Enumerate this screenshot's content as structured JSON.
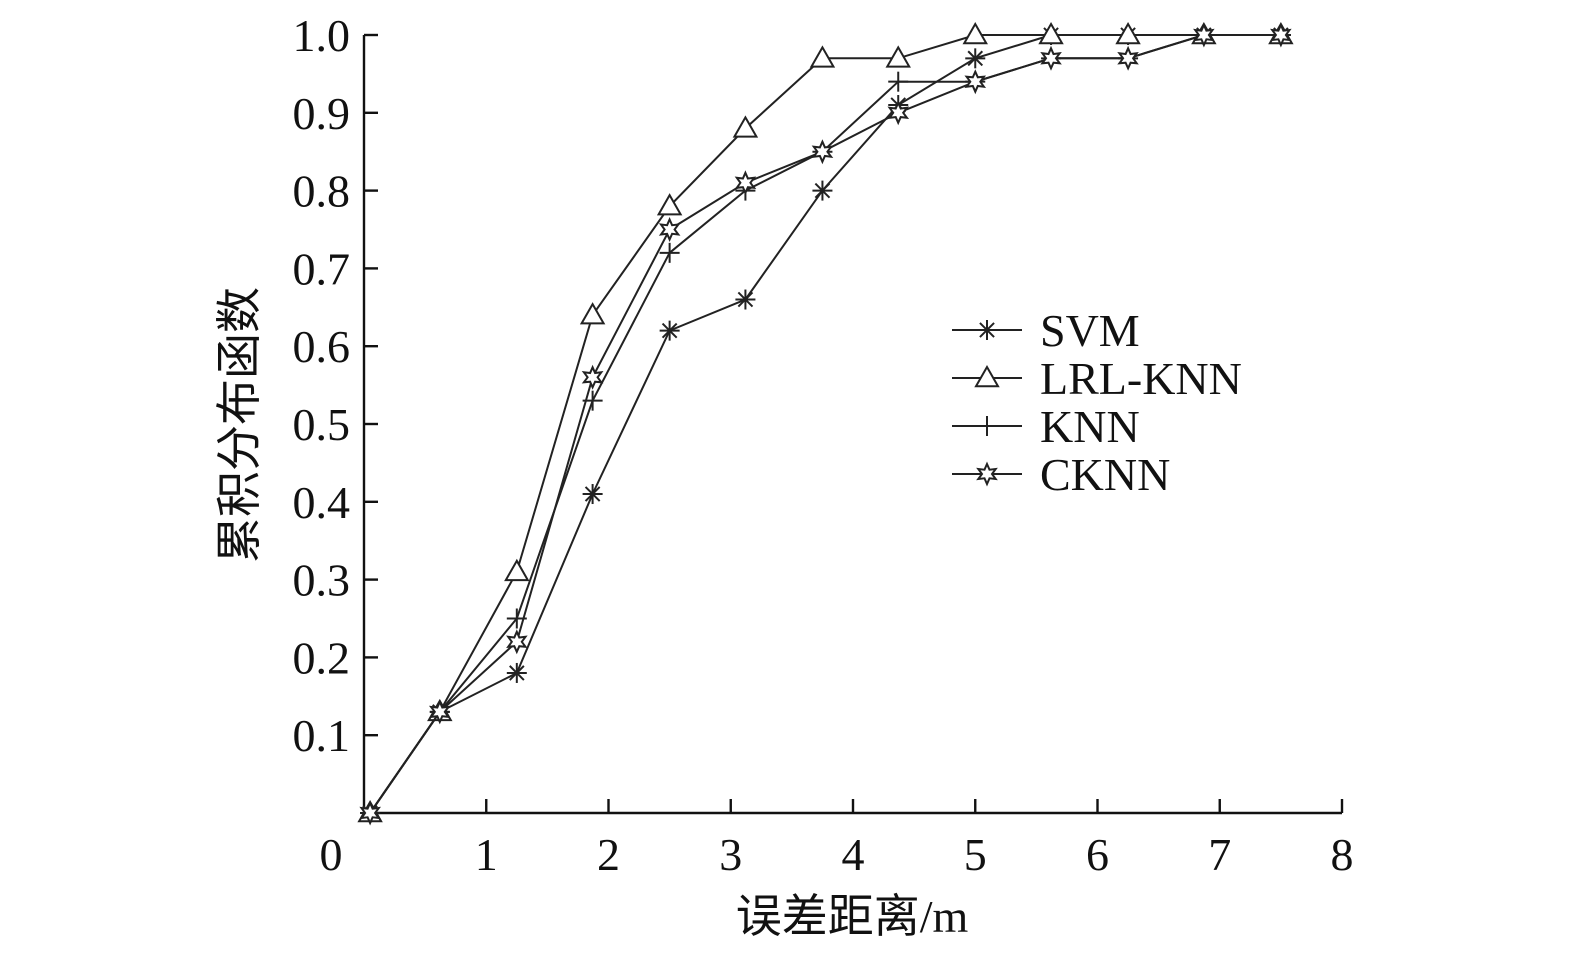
{
  "chart_data": {
    "type": "line",
    "xlabel": "误差距离/m",
    "ylabel": "累积分布函数",
    "xlim": [
      0,
      8
    ],
    "ylim": [
      0,
      1.0
    ],
    "x_ticks": [
      0,
      1,
      2,
      3,
      4,
      5,
      6,
      7,
      8
    ],
    "y_ticks": [
      0.1,
      0.2,
      0.3,
      0.4,
      0.5,
      0.6,
      0.7,
      0.8,
      0.9,
      1.0
    ],
    "x_tick_labels": [
      "0",
      "1",
      "2",
      "3",
      "4",
      "5",
      "6",
      "7",
      "8"
    ],
    "y_tick_labels": [
      "0.1",
      "0.2",
      "0.3",
      "0.4",
      "0.5",
      "0.6",
      "0.7",
      "0.8",
      "0.9",
      "1.0"
    ],
    "grid": false,
    "legend_position": "right-middle",
    "series": [
      {
        "name": "SVM",
        "marker": "asterisk",
        "x": [
          0.05,
          0.62,
          1.25,
          1.87,
          2.5,
          3.12,
          3.75,
          4.37,
          5.0,
          5.62,
          6.25,
          6.87,
          7.5
        ],
        "y": [
          0.0,
          0.13,
          0.18,
          0.41,
          0.62,
          0.66,
          0.8,
          0.91,
          0.97,
          1.0,
          1.0,
          1.0,
          1.0
        ]
      },
      {
        "name": "LRL-KNN",
        "marker": "triangle",
        "x": [
          0.05,
          0.62,
          1.25,
          1.87,
          2.5,
          3.12,
          3.75,
          4.37,
          5.0,
          5.62,
          6.25,
          6.87,
          7.5
        ],
        "y": [
          0.0,
          0.13,
          0.31,
          0.64,
          0.78,
          0.88,
          0.97,
          0.97,
          1.0,
          1.0,
          1.0,
          1.0,
          1.0
        ]
      },
      {
        "name": "KNN",
        "marker": "plus",
        "x": [
          0.05,
          0.62,
          1.25,
          1.87,
          2.5,
          3.12,
          3.75,
          4.37,
          5.0,
          5.62,
          6.25,
          6.87,
          7.5
        ],
        "y": [
          0.0,
          0.13,
          0.25,
          0.53,
          0.72,
          0.8,
          0.85,
          0.94,
          0.94,
          0.97,
          0.97,
          1.0,
          1.0
        ]
      },
      {
        "name": "CKNN",
        "marker": "star",
        "x": [
          0.05,
          0.62,
          1.25,
          1.87,
          2.5,
          3.12,
          3.75,
          4.37,
          5.0,
          5.62,
          6.25,
          6.87,
          7.5
        ],
        "y": [
          0.0,
          0.13,
          0.22,
          0.56,
          0.75,
          0.81,
          0.85,
          0.9,
          0.94,
          0.97,
          0.97,
          1.0,
          1.0
        ]
      }
    ]
  }
}
